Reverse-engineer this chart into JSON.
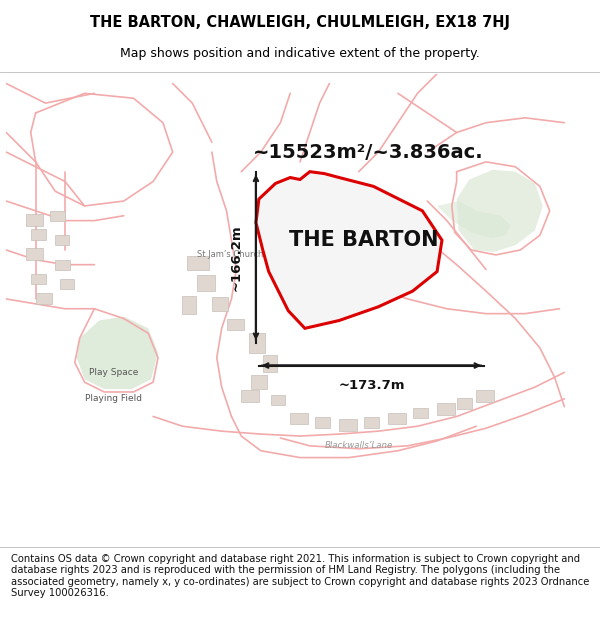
{
  "title_line1": "THE BARTON, CHAWLEIGH, CHULMLEIGH, EX18 7HJ",
  "title_line2": "Map shows position and indicative extent of the property.",
  "property_label": "THE BARTON",
  "area_text": "~15523m²/~3.836ac.",
  "dim_horizontal": "~173.7m",
  "dim_vertical": "~166.2m",
  "footer_text": "Contains OS data © Crown copyright and database right 2021. This information is subject to Crown copyright and database rights 2023 and is reproduced with the permission of HM Land Registry. The polygons (including the associated geometry, namely x, y co-ordinates) are subject to Crown copyright and database rights 2023 Ordnance Survey 100026316.",
  "map_bg": "#ffffff",
  "property_fill": "#f8f8f8",
  "property_edge": "#dd0000",
  "green_color": "#dae8d5",
  "road_color": "#f2aaaa",
  "bldg_color": "#e0d8d0",
  "bldg_edge": "#c8bfb8",
  "dim_color": "#1a1a1a",
  "title_fontsize": 10.5,
  "subtitle_fontsize": 9,
  "area_fontsize": 14,
  "label_fontsize": 15,
  "footer_fontsize": 7.2,
  "map_label_fontsize": 6.5
}
